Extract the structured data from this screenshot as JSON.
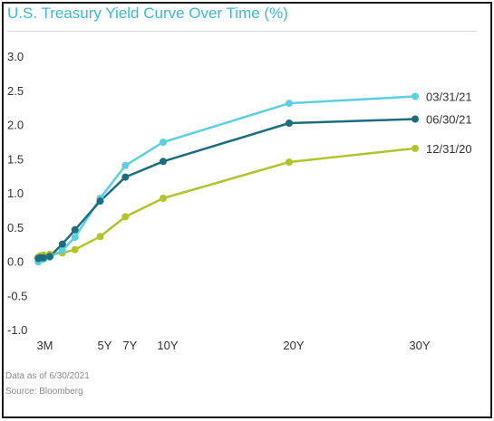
{
  "title": "U.S. Treasury Yield Curve Over Time (%)",
  "footnote": {
    "line1": "Data as of 6/30/2021",
    "line2": "Source: Bloomberg"
  },
  "chart_data": {
    "type": "line",
    "title": "U.S. Treasury Yield Curve Over Time (%)",
    "xlabel": "",
    "ylabel": "",
    "ylim": [
      -1.0,
      3.0
    ],
    "y_ticks": [
      "3.0",
      "2.5",
      "2.0",
      "1.5",
      "1.0",
      "0.5",
      "0.0",
      "-0.5",
      "-1.0"
    ],
    "x_axis_scale": "maturity in years (linear)",
    "x_ticks": [
      {
        "label": "3M",
        "years": 0.25
      },
      {
        "label": "5Y",
        "years": 5
      },
      {
        "label": "7Y",
        "years": 7
      },
      {
        "label": "10Y",
        "years": 10
      },
      {
        "label": "20Y",
        "years": 20
      },
      {
        "label": "30Y",
        "years": 30
      }
    ],
    "grid": false,
    "legend": "labels at right end of each line",
    "series": [
      {
        "name": "03/31/21",
        "color": "#5ccfe0",
        "x": [
          0.083,
          0.25,
          0.5,
          1,
          2,
          3,
          5,
          7,
          10,
          20,
          30
        ],
        "values": [
          -0.01,
          0.02,
          0.03,
          0.06,
          0.16,
          0.35,
          0.92,
          1.4,
          1.74,
          2.31,
          2.41
        ]
      },
      {
        "name": "06/30/21",
        "color": "#1b6e7f",
        "x": [
          0.083,
          0.25,
          0.5,
          1,
          2,
          3,
          5,
          7,
          10,
          20,
          30
        ],
        "values": [
          0.04,
          0.05,
          0.05,
          0.07,
          0.25,
          0.46,
          0.88,
          1.23,
          1.46,
          2.02,
          2.08
        ]
      },
      {
        "name": "12/31/20",
        "color": "#b3c42b",
        "x": [
          0.083,
          0.25,
          0.5,
          1,
          2,
          3,
          5,
          7,
          10,
          20,
          30
        ],
        "values": [
          0.06,
          0.08,
          0.09,
          0.1,
          0.12,
          0.17,
          0.36,
          0.65,
          0.92,
          1.45,
          1.65
        ]
      }
    ]
  }
}
